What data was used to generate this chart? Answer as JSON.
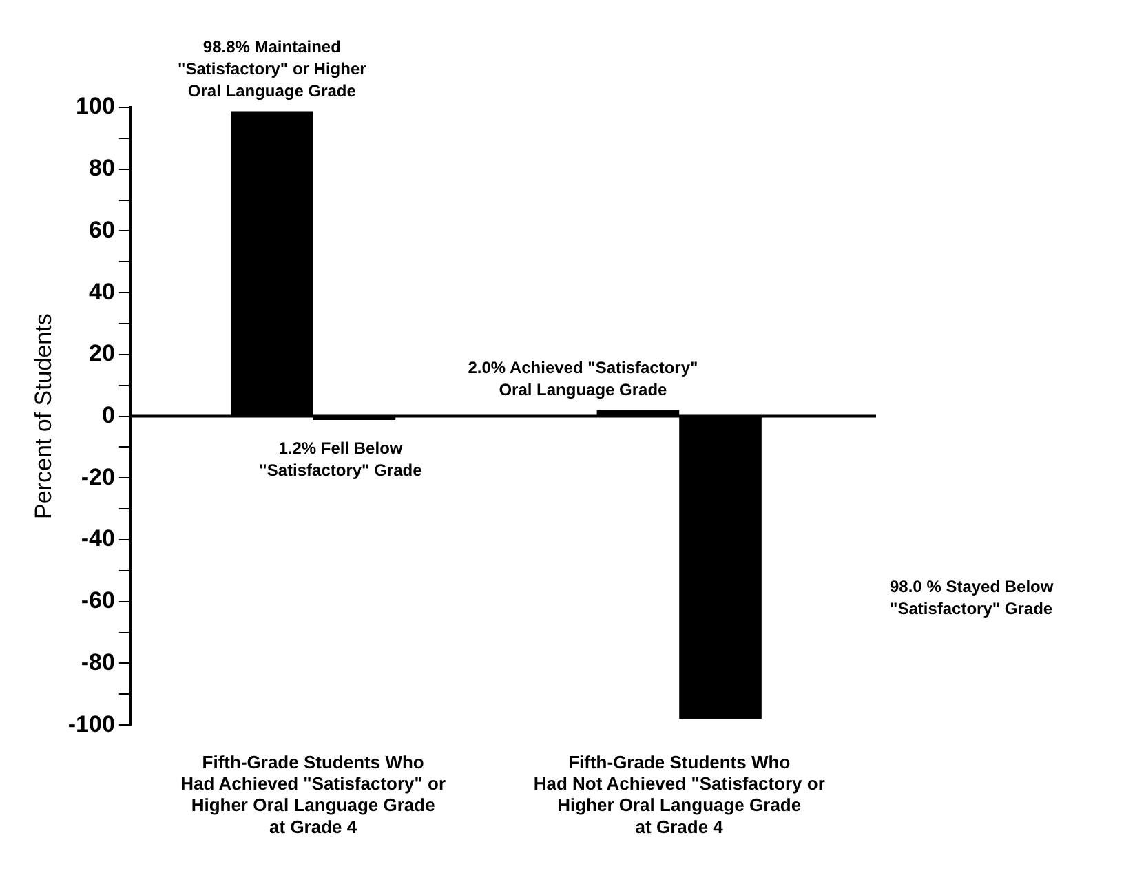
{
  "chart_data": {
    "type": "bar",
    "ylabel": "Percent of Students",
    "categories": [
      "Fifth-Grade Students Who\nHad Achieved \"Satisfactory\" or\nHigher Oral Language Grade\nat Grade 4",
      "Fifth-Grade Students Who\nHad Not Achieved \"Satisfactory or\nHigher Oral Language Grade\nat Grade 4"
    ],
    "series": [
      {
        "color": "#000000",
        "values": [
          98.8,
          2.0
        ]
      },
      {
        "color": "#000000",
        "values": [
          -1.2,
          -98.0
        ]
      }
    ],
    "ylim": [
      -100,
      100
    ],
    "yticks": [
      -100,
      {
        "value": -90,
        "label": null
      },
      -80,
      {
        "value": -70,
        "label": null
      },
      -60,
      {
        "value": -50,
        "label": null
      },
      -40,
      {
        "value": -30,
        "label": null
      },
      -20,
      {
        "value": -10,
        "label": null
      },
      0,
      {
        "value": 10,
        "label": null
      },
      20,
      {
        "value": 30,
        "label": null
      },
      40,
      {
        "value": 50,
        "label": null
      },
      60,
      {
        "value": 70,
        "label": null
      },
      80,
      {
        "value": 90,
        "label": null
      },
      100
    ],
    "annotations": [
      {
        "text": "98.8% Maintained\n\"Satisfactory\" or Higher\nOral Language Grade",
        "x": "Fifth-Grade Students Who\nHad Achieved \"Satisfactory\" or\nHigher Oral Language Grade\nat Grade 4",
        "y": 98.8
      },
      {
        "text": "1.2% Fell Below\n\"Satisfactory\" Grade",
        "x": "Fifth-Grade Students Who\nHad Achieved \"Satisfactory\" or\nHigher Oral Language Grade\nat Grade 4",
        "y": -1.2
      },
      {
        "text": "2.0% Achieved \"Satisfactory\"\nOral Language Grade",
        "x": "Fifth-Grade Students Who\nHad Not Achieved \"Satisfactory or\nHigher Oral Language Grade\nat Grade 4",
        "y": 2.0
      },
      "98.0 % Stayed Below\n\"Satisfactory\" Grade"
    ]
  }
}
